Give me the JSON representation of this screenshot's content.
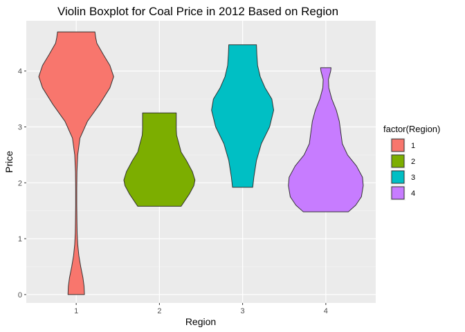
{
  "chart_data": {
    "type": "violin",
    "title": "Violin Boxplot for Coal Price in 2012 Based on Region",
    "xlabel": "Region",
    "ylabel": "Price",
    "categories": [
      "1",
      "2",
      "3",
      "4"
    ],
    "ylim": [
      -0.15,
      4.9
    ],
    "yticks": [
      0,
      1,
      2,
      3,
      4
    ],
    "grid": true,
    "legend": {
      "title": "factor(Region)",
      "position": "right",
      "entries": [
        "1",
        "2",
        "3",
        "4"
      ]
    },
    "colors": [
      "#F8766D",
      "#7CAE00",
      "#00BFC4",
      "#C77CFF"
    ],
    "series": [
      {
        "category": "1",
        "min": 0.0,
        "max": 4.7,
        "profile": [
          [
            0.0,
            0.22
          ],
          [
            0.15,
            0.21
          ],
          [
            0.3,
            0.18
          ],
          [
            0.5,
            0.12
          ],
          [
            0.7,
            0.07
          ],
          [
            0.9,
            0.04
          ],
          [
            1.1,
            0.025
          ],
          [
            1.3,
            0.02
          ],
          [
            1.6,
            0.015
          ],
          [
            1.9,
            0.015
          ],
          [
            2.2,
            0.02
          ],
          [
            2.5,
            0.04
          ],
          [
            2.8,
            0.1
          ],
          [
            3.1,
            0.3
          ],
          [
            3.4,
            0.62
          ],
          [
            3.7,
            0.9
          ],
          [
            3.9,
            1.0
          ],
          [
            4.1,
            0.9
          ],
          [
            4.3,
            0.72
          ],
          [
            4.5,
            0.55
          ],
          [
            4.6,
            0.52
          ],
          [
            4.7,
            0.5
          ]
        ]
      },
      {
        "category": "2",
        "min": 1.58,
        "max": 3.25,
        "profile": [
          [
            1.58,
            0.58
          ],
          [
            1.65,
            0.65
          ],
          [
            1.8,
            0.8
          ],
          [
            1.95,
            0.92
          ],
          [
            2.05,
            0.95
          ],
          [
            2.2,
            0.88
          ],
          [
            2.4,
            0.72
          ],
          [
            2.55,
            0.58
          ],
          [
            2.7,
            0.52
          ],
          [
            2.85,
            0.46
          ],
          [
            2.95,
            0.45
          ],
          [
            3.1,
            0.45
          ],
          [
            3.25,
            0.45
          ]
        ]
      },
      {
        "category": "3",
        "min": 1.92,
        "max": 4.47,
        "profile": [
          [
            1.92,
            0.27
          ],
          [
            2.1,
            0.3
          ],
          [
            2.4,
            0.37
          ],
          [
            2.7,
            0.5
          ],
          [
            3.0,
            0.72
          ],
          [
            3.3,
            0.83
          ],
          [
            3.5,
            0.78
          ],
          [
            3.7,
            0.6
          ],
          [
            3.9,
            0.47
          ],
          [
            4.1,
            0.4
          ],
          [
            4.3,
            0.38
          ],
          [
            4.47,
            0.37
          ]
        ]
      },
      {
        "category": "4",
        "min": 1.48,
        "max": 4.06,
        "profile": [
          [
            1.48,
            0.6
          ],
          [
            1.6,
            0.8
          ],
          [
            1.75,
            0.95
          ],
          [
            1.95,
            1.0
          ],
          [
            2.1,
            0.98
          ],
          [
            2.3,
            0.82
          ],
          [
            2.5,
            0.58
          ],
          [
            2.7,
            0.44
          ],
          [
            2.9,
            0.4
          ],
          [
            3.1,
            0.36
          ],
          [
            3.3,
            0.28
          ],
          [
            3.5,
            0.16
          ],
          [
            3.7,
            0.08
          ],
          [
            3.85,
            0.07
          ],
          [
            4.0,
            0.13
          ],
          [
            4.06,
            0.14
          ]
        ]
      }
    ]
  }
}
